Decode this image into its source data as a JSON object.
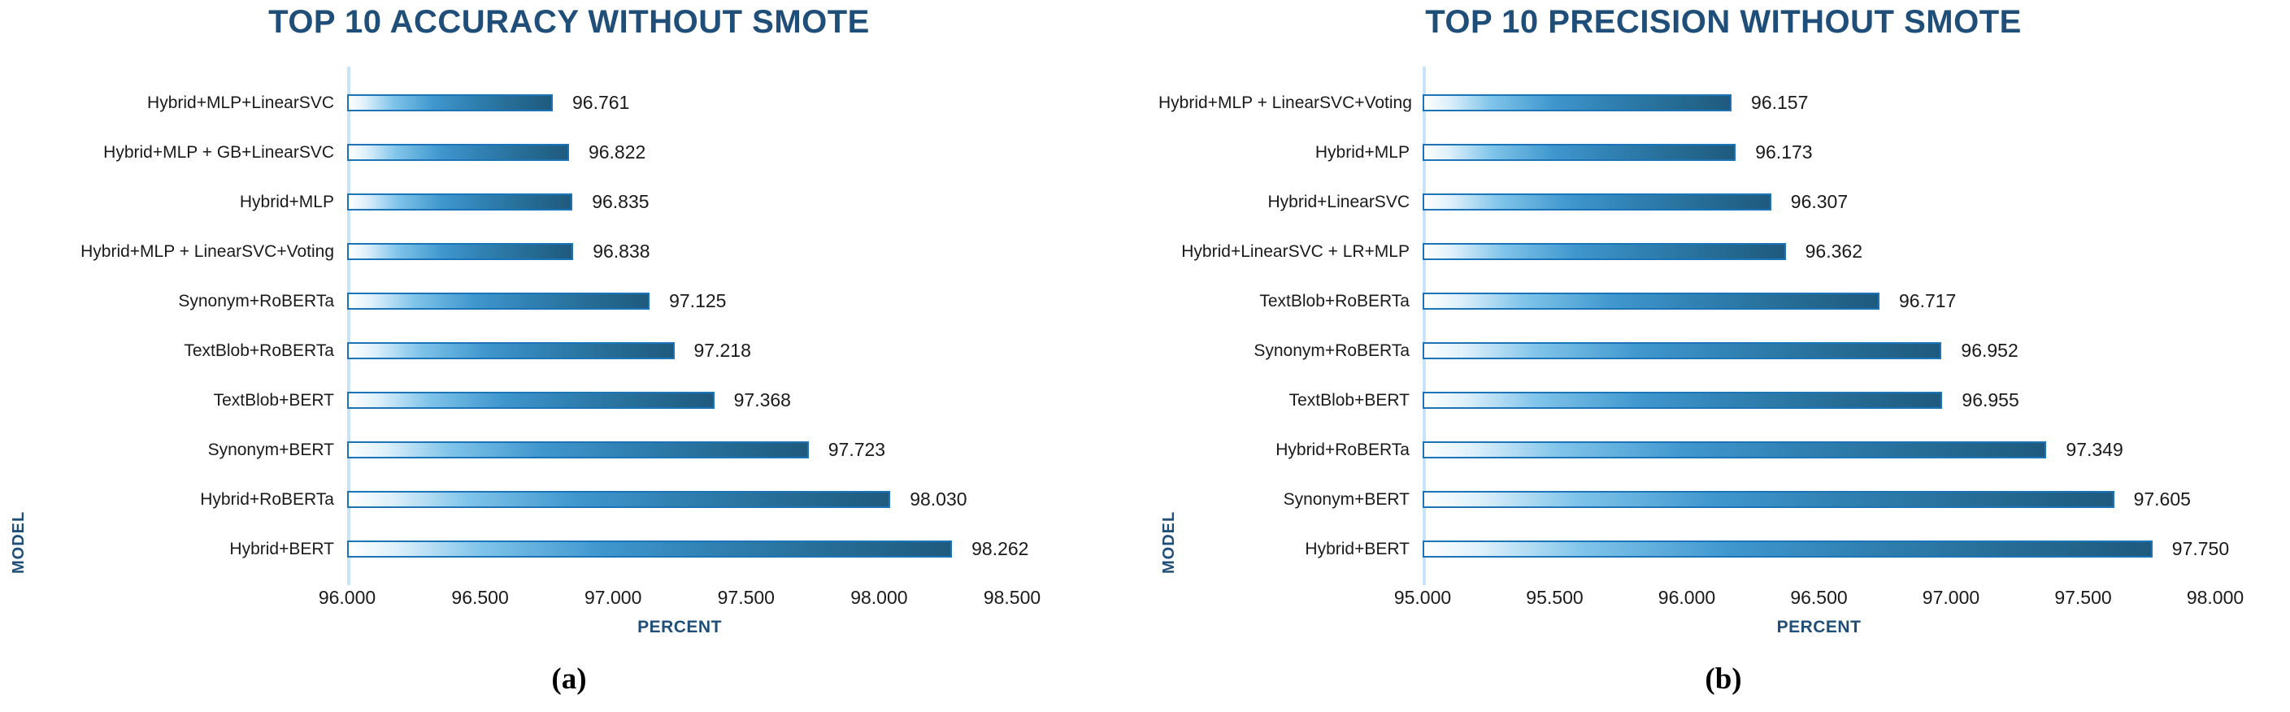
{
  "page": {
    "background": "#ffffff"
  },
  "colors": {
    "title_navy": "#1F4E79",
    "axis_label_navy": "#1F4E79",
    "text": "#1a1a1a",
    "bar_border": "#1C74B8",
    "bar_gradient_stops": [
      "#FEFFFF",
      "#DDF0FB",
      "#7FC4EA",
      "#3F97CE",
      "#2F7FB0",
      "#256B93",
      "#1F5A7E"
    ],
    "bar_gradient_positions": [
      "0%",
      "8%",
      "22%",
      "42%",
      "62%",
      "82%",
      "100%"
    ],
    "axis_line": "#C8E4F6"
  },
  "chart_data": [
    {
      "type": "bar",
      "orientation": "horizontal",
      "title": "TOP 10 ACCURACY WITHOUT SMOTE",
      "xlabel": "PERCENT",
      "ylabel": "MODEL",
      "caption": "(a)",
      "xlim": [
        96.0,
        98.5
      ],
      "xticks": [
        "96.000",
        "96.500",
        "97.000",
        "97.500",
        "98.000",
        "98.500"
      ],
      "grid": false,
      "legend": false,
      "categories": [
        "Hybrid+MLP+LinearSVC",
        "Hybrid+MLP + GB+LinearSVC",
        "Hybrid+MLP",
        "Hybrid+MLP + LinearSVC+Voting",
        "Synonym+RoBERTa",
        "TextBlob+RoBERTa",
        "TextBlob+BERT",
        "Synonym+BERT",
        "Hybrid+RoBERTa",
        "Hybrid+BERT"
      ],
      "values": [
        96.761,
        96.822,
        96.835,
        96.838,
        97.125,
        97.218,
        97.368,
        97.723,
        98.03,
        98.262
      ],
      "value_labels": [
        "96.761",
        "96.822",
        "96.835",
        "96.838",
        "97.125",
        "97.218",
        "97.368",
        "97.723",
        "98.030",
        "98.262"
      ]
    },
    {
      "type": "bar",
      "orientation": "horizontal",
      "title": "TOP 10 PRECISION WITHOUT SMOTE",
      "xlabel": "PERCENT",
      "ylabel": "MODEL",
      "caption": "(b)",
      "xlim": [
        95.0,
        98.0
      ],
      "xticks": [
        "95.000",
        "95.500",
        "96.000",
        "96.500",
        "97.000",
        "97.500",
        "98.000"
      ],
      "grid": false,
      "legend": false,
      "categories": [
        "Hybrid+MLP + LinearSVC+Voting",
        "Hybrid+MLP",
        "Hybrid+LinearSVC",
        "Hybrid+LinearSVC + LR+MLP",
        "TextBlob+RoBERTa",
        "Synonym+RoBERTa",
        "TextBlob+BERT",
        "Hybrid+RoBERTa",
        "Synonym+BERT",
        "Hybrid+BERT"
      ],
      "values": [
        96.157,
        96.173,
        96.307,
        96.362,
        96.717,
        96.952,
        96.955,
        97.349,
        97.605,
        97.75
      ],
      "value_labels": [
        "96.157",
        "96.173",
        "96.307",
        "96.362",
        "96.717",
        "96.952",
        "96.955",
        "97.349",
        "97.605",
        "97.750"
      ]
    }
  ]
}
